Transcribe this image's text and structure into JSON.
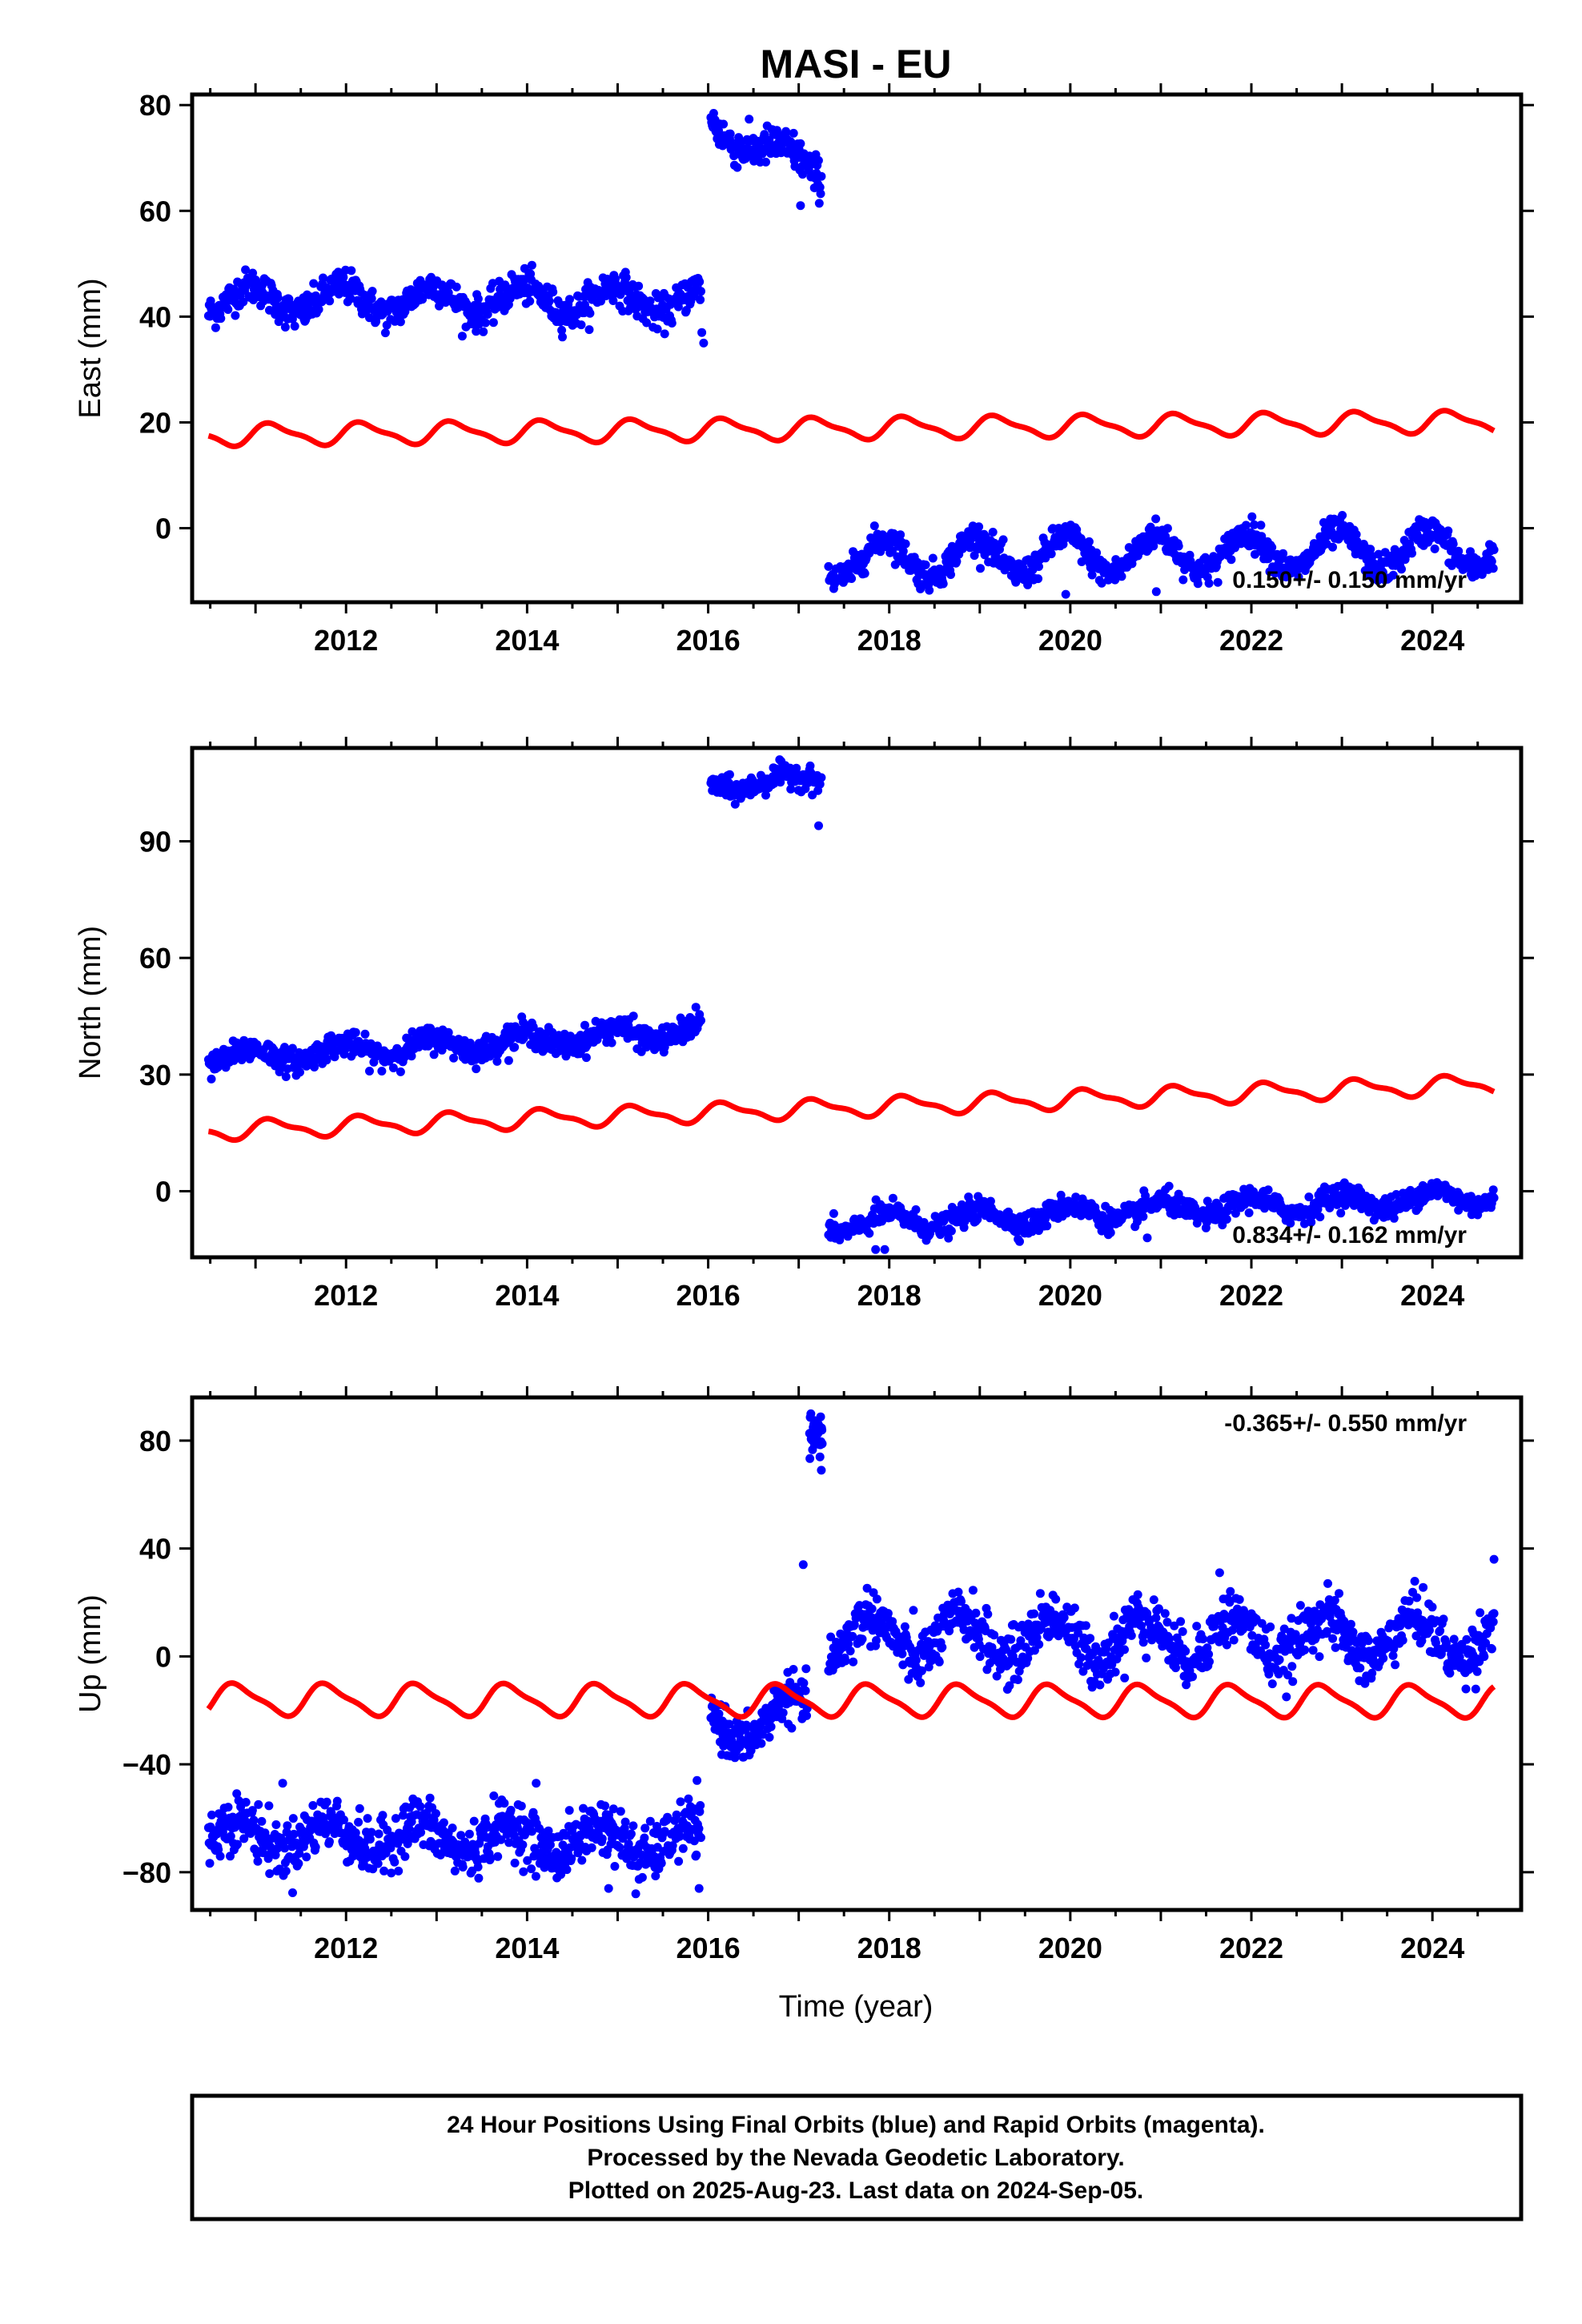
{
  "title": "MASI - EU",
  "xlabel": "Time (year)",
  "footer": {
    "line1": "24 Hour Positions Using Final Orbits (blue) and Rapid Orbits (magenta).",
    "line2": "Processed by the Nevada Geodetic Laboratory.",
    "line3": "Plotted on 2025-Aug-23. Last data on 2024-Sep-05."
  },
  "colors": {
    "final_orbits": "#0000ff",
    "model": "#ff0000",
    "frame": "#000000",
    "background": "#ffffff"
  },
  "chart_data": [
    {
      "type": "scatter",
      "component": "east",
      "ylabel": "East (mm)",
      "xlim": [
        2010.3,
        2024.98
      ],
      "ylim": [
        -14,
        82
      ],
      "xticks": [
        2012,
        2014,
        2016,
        2018,
        2020,
        2022,
        2024
      ],
      "yticks": [
        0,
        20,
        40,
        60,
        80
      ],
      "rate_label": "0.150+/- 0.150 mm/yr",
      "rate_position": "bottom-right",
      "series": [
        {
          "name": "Final Orbits",
          "color": "#0000ff",
          "marker": "dot",
          "segments": [
            {
              "x0": 2010.48,
              "x1": 2015.92,
              "level": 43.2,
              "trend": 0.0,
              "amp": 2.6,
              "phase": 0.3,
              "noise": 1.6,
              "n": 680
            },
            {
              "x0": 2016.03,
              "x1": 2017.25,
              "level": 76.0,
              "trend": -7.0,
              "amp": 2.0,
              "phase": 0.4,
              "noise": 1.8,
              "n": 160
            },
            {
              "x0": 2017.33,
              "x1": 2024.68,
              "level": -5.8,
              "trend": 0.27,
              "amp": 3.6,
              "phase": 0.3,
              "noise": 1.4,
              "n": 900
            }
          ],
          "outliers": [
            [
              2015.95,
              35.0
            ],
            [
              2015.93,
              37.0
            ],
            [
              2017.02,
              61.0
            ],
            [
              2019.95,
              -12.5
            ],
            [
              2020.95,
              -12.0
            ]
          ]
        },
        {
          "name": "Model",
          "color": "#ff0000",
          "marker": "line",
          "x0": 2010.48,
          "x1": 2024.68,
          "level": 17.6,
          "trend": 0.18,
          "amp": 1.9,
          "amp2": 0.6,
          "phase": 0.05,
          "step": 0.02
        }
      ]
    },
    {
      "type": "scatter",
      "component": "north",
      "ylabel": "North (mm)",
      "xlim": [
        2010.3,
        2024.98
      ],
      "ylim": [
        -17,
        114
      ],
      "xticks": [
        2012,
        2014,
        2016,
        2018,
        2020,
        2022,
        2024
      ],
      "yticks": [
        0,
        30,
        60,
        90
      ],
      "rate_label": "0.834+/- 0.162 mm/yr",
      "rate_position": "bottom-right",
      "series": [
        {
          "name": "Final Orbits",
          "color": "#0000ff",
          "marker": "dot",
          "segments": [
            {
              "x0": 2010.48,
              "x1": 2015.92,
              "level": 34.0,
              "trend": 1.35,
              "amp": 2.0,
              "phase": 0.3,
              "noise": 1.6,
              "n": 680
            },
            {
              "x0": 2016.03,
              "x1": 2017.25,
              "level": 104.0,
              "trend": 2.0,
              "amp": 1.5,
              "phase": 0.4,
              "noise": 1.5,
              "n": 160
            },
            {
              "x0": 2017.33,
              "x1": 2024.68,
              "level": -8.5,
              "trend": 1.0,
              "amp": 2.2,
              "phase": 0.25,
              "noise": 1.5,
              "n": 900
            }
          ],
          "outliers": [
            [
              2017.22,
              94.0
            ],
            [
              2017.85,
              -15.0
            ],
            [
              2017.95,
              -15.0
            ],
            [
              2020.85,
              -12.0
            ]
          ]
        },
        {
          "name": "Model",
          "color": "#ff0000",
          "marker": "line",
          "x0": 2010.48,
          "x1": 2024.68,
          "level": 15.5,
          "trend": 0.85,
          "amp": 2.2,
          "amp2": 0.8,
          "phase": 0.05,
          "step": 0.02
        }
      ]
    },
    {
      "type": "scatter",
      "component": "up",
      "ylabel": "Up (mm)",
      "xlim": [
        2010.3,
        2024.98
      ],
      "ylim": [
        -94,
        96
      ],
      "xticks": [
        2012,
        2014,
        2016,
        2018,
        2020,
        2022,
        2024
      ],
      "yticks": [
        -80,
        -40,
        0,
        40,
        80
      ],
      "rate_label": "-0.365+/- 0.550 mm/yr",
      "rate_position": "top-right",
      "series": [
        {
          "name": "Final Orbits",
          "color": "#0000ff",
          "marker": "dot",
          "segments": [
            {
              "x0": 2010.48,
              "x1": 2015.92,
              "level": -66.0,
              "trend": -0.5,
              "amp": 5.5,
              "phase": 0.45,
              "noise": 5.0,
              "n": 750
            },
            {
              "x0": 2016.03,
              "x1": 2017.1,
              "level": -27.0,
              "trend": 6.0,
              "amp": 7.0,
              "phase": 0.35,
              "noise": 4.0,
              "n": 170
            },
            {
              "x0": 2017.12,
              "x1": 2017.26,
              "level": 82.0,
              "trend": 0.0,
              "amp": 0.0,
              "phase": 0.0,
              "noise": 4.0,
              "n": 40
            },
            {
              "x0": 2017.33,
              "x1": 2024.68,
              "level": 7.0,
              "trend": 0.0,
              "amp": 8.0,
              "phase": 0.45,
              "noise": 5.0,
              "n": 950
            }
          ],
          "outliers": [
            [
              2017.05,
              34.0
            ],
            [
              2017.25,
              69.0
            ],
            [
              2015.9,
              -86.0
            ],
            [
              2015.2,
              -88.0
            ],
            [
              2014.9,
              -86.0
            ],
            [
              2014.1,
              -47.0
            ],
            [
              2011.3,
              -47.0
            ],
            [
              2021.65,
              31.0
            ],
            [
              2020.6,
              -8.0
            ],
            [
              2024.68,
              36.0
            ]
          ]
        },
        {
          "name": "Model",
          "color": "#ff0000",
          "marker": "line",
          "x0": 2010.48,
          "x1": 2024.68,
          "level": -16.0,
          "trend": -0.05,
          "amp": 5.5,
          "amp2": 1.5,
          "phase": 0.45,
          "step": 0.02
        }
      ]
    }
  ]
}
